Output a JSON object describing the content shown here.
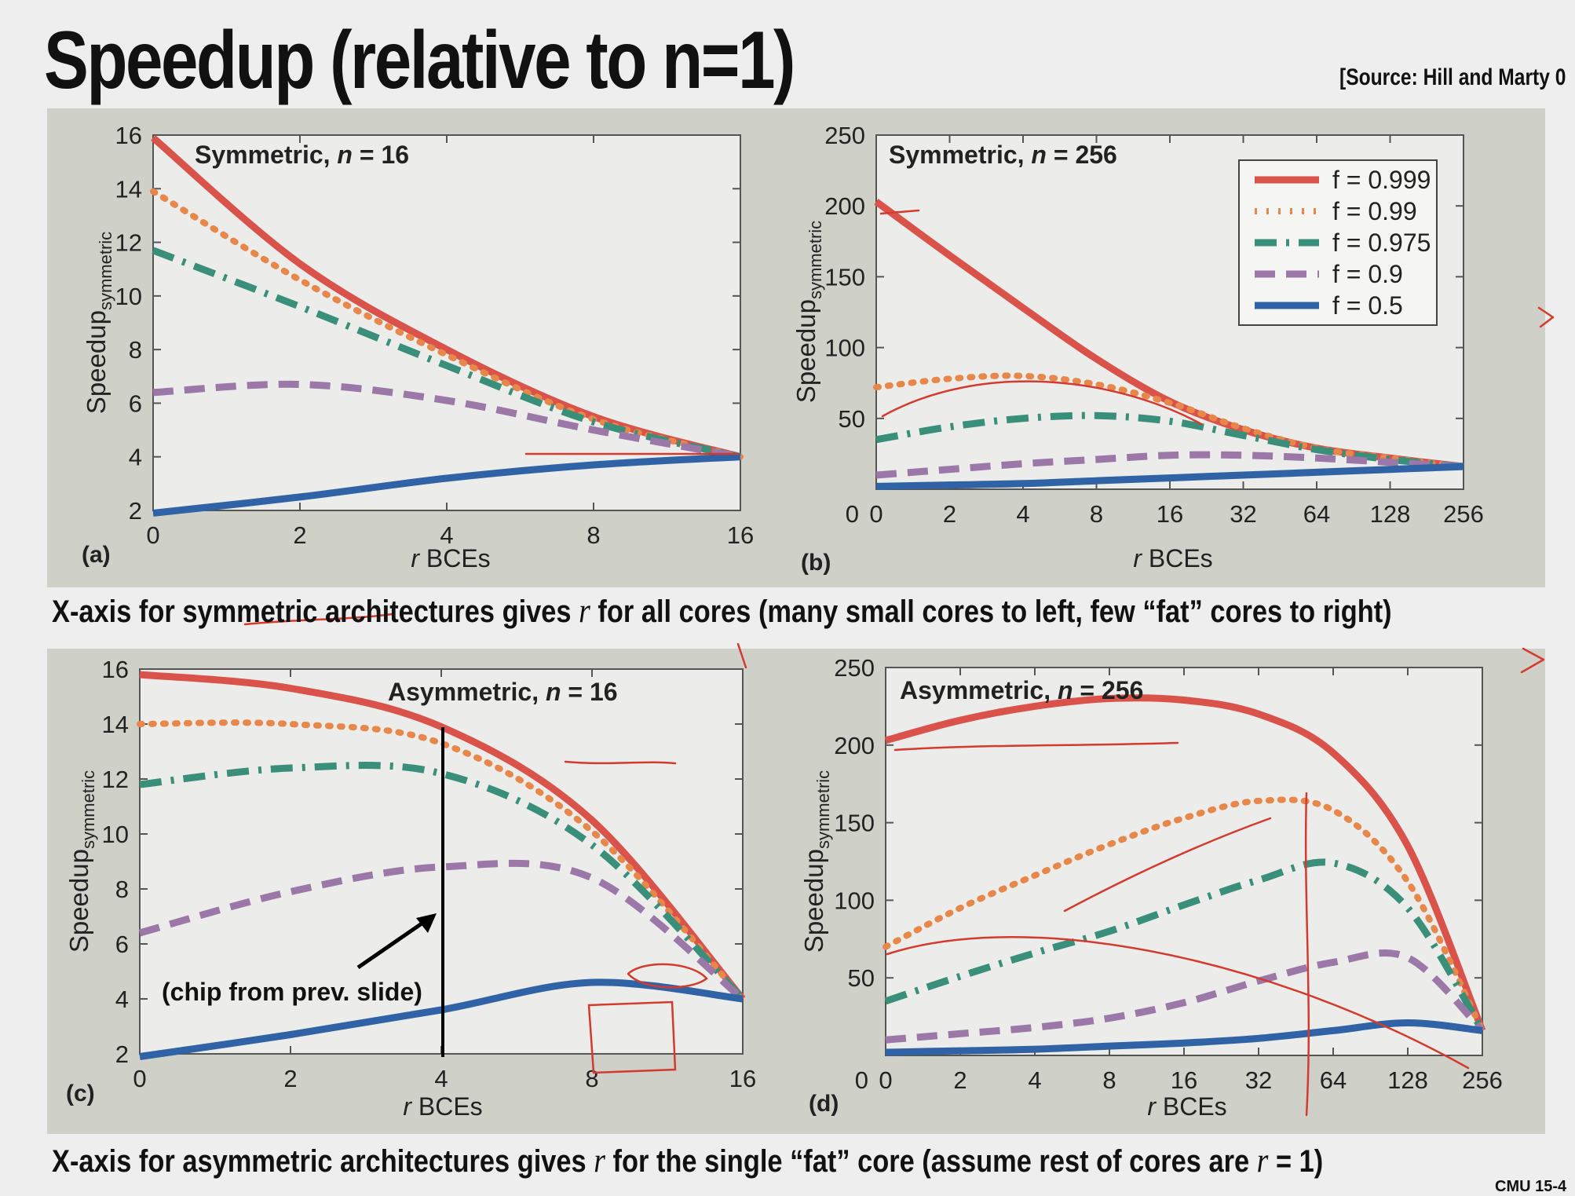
{
  "slide": {
    "title": "Speedup (relative to n=1)",
    "source": "[Source: Hill and Marty 0",
    "caption_top": {
      "before": "X-axis for symmetric architectures gives ",
      "var": "r",
      "after": " for all cores (many small cores to left, few “fat” cores to right)"
    },
    "caption_bottom": {
      "before": "X-axis for asymmetric architectures gives ",
      "var": "r",
      "after": " for the single “fat” core (assume rest of cores are ",
      "var2": "r",
      "after2": " = 1)"
    },
    "footer": "CMU 15-4"
  },
  "annotation": {
    "text": "(chip from prev. slide)"
  },
  "legend": {
    "position": "top-right of panel (b)",
    "entries": [
      {
        "label": "f = 0.999",
        "style": "solid",
        "color": "#d9534a"
      },
      {
        "label": "f = 0.99",
        "style": "dotted",
        "color": "#e8874a"
      },
      {
        "label": "f = 0.975",
        "style": "dashdot",
        "color": "#3a8f7a"
      },
      {
        "label": "f = 0.9",
        "style": "dashed",
        "color": "#9b78a8"
      },
      {
        "label": "f = 0.5",
        "style": "solid",
        "color": "#2f63a6"
      }
    ]
  },
  "chart_data": [
    {
      "type": "line",
      "panel": "(a)",
      "title": "Symmetric, n = 16",
      "title_prefix": "Symmetric, ",
      "n_label": "n",
      "n_value": "= 16",
      "xlabel_var": "r",
      "xlabel": "BCEs",
      "ylabel": "Speedup",
      "ylabel_sub": "symmetric",
      "categories": [
        "0",
        "2",
        "4",
        "8",
        "16"
      ],
      "ylim": [
        2,
        16
      ],
      "yticks": [
        2,
        4,
        6,
        8,
        10,
        12,
        14,
        16
      ],
      "series": [
        {
          "name": "f = 0.999",
          "values": [
            15.9,
            11.2,
            8.0,
            5.5,
            4.0
          ]
        },
        {
          "name": "f = 0.99",
          "values": [
            13.9,
            10.6,
            7.8,
            5.4,
            4.0
          ]
        },
        {
          "name": "f = 0.975",
          "values": [
            11.7,
            9.6,
            7.4,
            5.3,
            4.0
          ]
        },
        {
          "name": "f = 0.9",
          "values": [
            6.4,
            6.7,
            6.1,
            5.0,
            4.0
          ]
        },
        {
          "name": "f = 0.5",
          "values": [
            1.9,
            2.5,
            3.2,
            3.7,
            4.0
          ]
        }
      ]
    },
    {
      "type": "line",
      "panel": "(b)",
      "title": "Symmetric, n = 256",
      "title_prefix": "Symmetric, ",
      "n_label": "n",
      "n_value": "= 256",
      "xlabel_var": "r",
      "xlabel": "BCEs",
      "ylabel": "Speedup",
      "ylabel_sub": "symmetric",
      "categories": [
        "0",
        "2",
        "4",
        "8",
        "16",
        "32",
        "64",
        "128",
        "256"
      ],
      "ylim": [
        0,
        250
      ],
      "yticks": [
        50,
        100,
        150,
        200,
        250
      ],
      "ytick_zero_at_axis": "0",
      "series": [
        {
          "name": "f = 0.999",
          "values": [
            203,
            165,
            128,
            92,
            62,
            42,
            29,
            22,
            16
          ]
        },
        {
          "name": "f = 0.99",
          "values": [
            72,
            78,
            80,
            74,
            61,
            43,
            29,
            22,
            16
          ]
        },
        {
          "name": "f = 0.975",
          "values": [
            35,
            44,
            50,
            52,
            48,
            38,
            28,
            21,
            16
          ]
        },
        {
          "name": "f = 0.9",
          "values": [
            10,
            14,
            18,
            21,
            24,
            24,
            22,
            19,
            16
          ]
        },
        {
          "name": "f = 0.5",
          "values": [
            2,
            3,
            4,
            6,
            8,
            10,
            12,
            14,
            16
          ]
        }
      ]
    },
    {
      "type": "line",
      "panel": "(c)",
      "title": "Asymmetric, n = 16",
      "title_prefix": "Asymmetric, ",
      "n_label": "n",
      "n_value": "= 16",
      "xlabel_var": "r",
      "xlabel": "BCEs",
      "ylabel": "Speedup",
      "ylabel_sub": "symmetric",
      "categories": [
        "0",
        "2",
        "4",
        "8",
        "16"
      ],
      "ylim": [
        2,
        16
      ],
      "yticks": [
        2,
        4,
        6,
        8,
        10,
        12,
        14,
        16
      ],
      "series": [
        {
          "name": "f = 0.999",
          "values": [
            15.8,
            15.3,
            13.9,
            10.5,
            4.0
          ]
        },
        {
          "name": "f = 0.99",
          "values": [
            14.0,
            14.0,
            13.3,
            10.1,
            4.0
          ]
        },
        {
          "name": "f = 0.975",
          "values": [
            11.8,
            12.4,
            12.2,
            9.6,
            4.0
          ]
        },
        {
          "name": "f = 0.9",
          "values": [
            6.4,
            7.9,
            8.8,
            8.4,
            4.0
          ]
        },
        {
          "name": "f = 0.5",
          "values": [
            1.9,
            2.7,
            3.6,
            4.6,
            4.0
          ]
        }
      ]
    },
    {
      "type": "line",
      "panel": "(d)",
      "title": "Asymmetric, n = 256",
      "title_prefix": "Asymmetric, ",
      "n_label": "n",
      "n_value": "= 256",
      "xlabel_var": "r",
      "xlabel": "BCEs",
      "ylabel": "Speedup",
      "ylabel_sub": "symmetric",
      "categories": [
        "0",
        "2",
        "4",
        "8",
        "16",
        "32",
        "64",
        "128",
        "256"
      ],
      "ylim": [
        0,
        250
      ],
      "yticks": [
        50,
        100,
        150,
        200,
        250
      ],
      "ytick_zero_at_axis": "0",
      "series": [
        {
          "name": "f = 0.999",
          "values": [
            203,
            216,
            225,
            230,
            229,
            220,
            195,
            135,
            16
          ]
        },
        {
          "name": "f = 0.99",
          "values": [
            70,
            95,
            116,
            136,
            153,
            164,
            158,
            112,
            16
          ]
        },
        {
          "name": "f = 0.975",
          "values": [
            35,
            51,
            66,
            80,
            97,
            113,
            124,
            95,
            16
          ]
        },
        {
          "name": "f = 0.9",
          "values": [
            10,
            14,
            18,
            24,
            34,
            48,
            60,
            63,
            16
          ]
        },
        {
          "name": "f = 0.5",
          "values": [
            2,
            3,
            4,
            6,
            8,
            11,
            16,
            21,
            16
          ]
        }
      ]
    }
  ]
}
